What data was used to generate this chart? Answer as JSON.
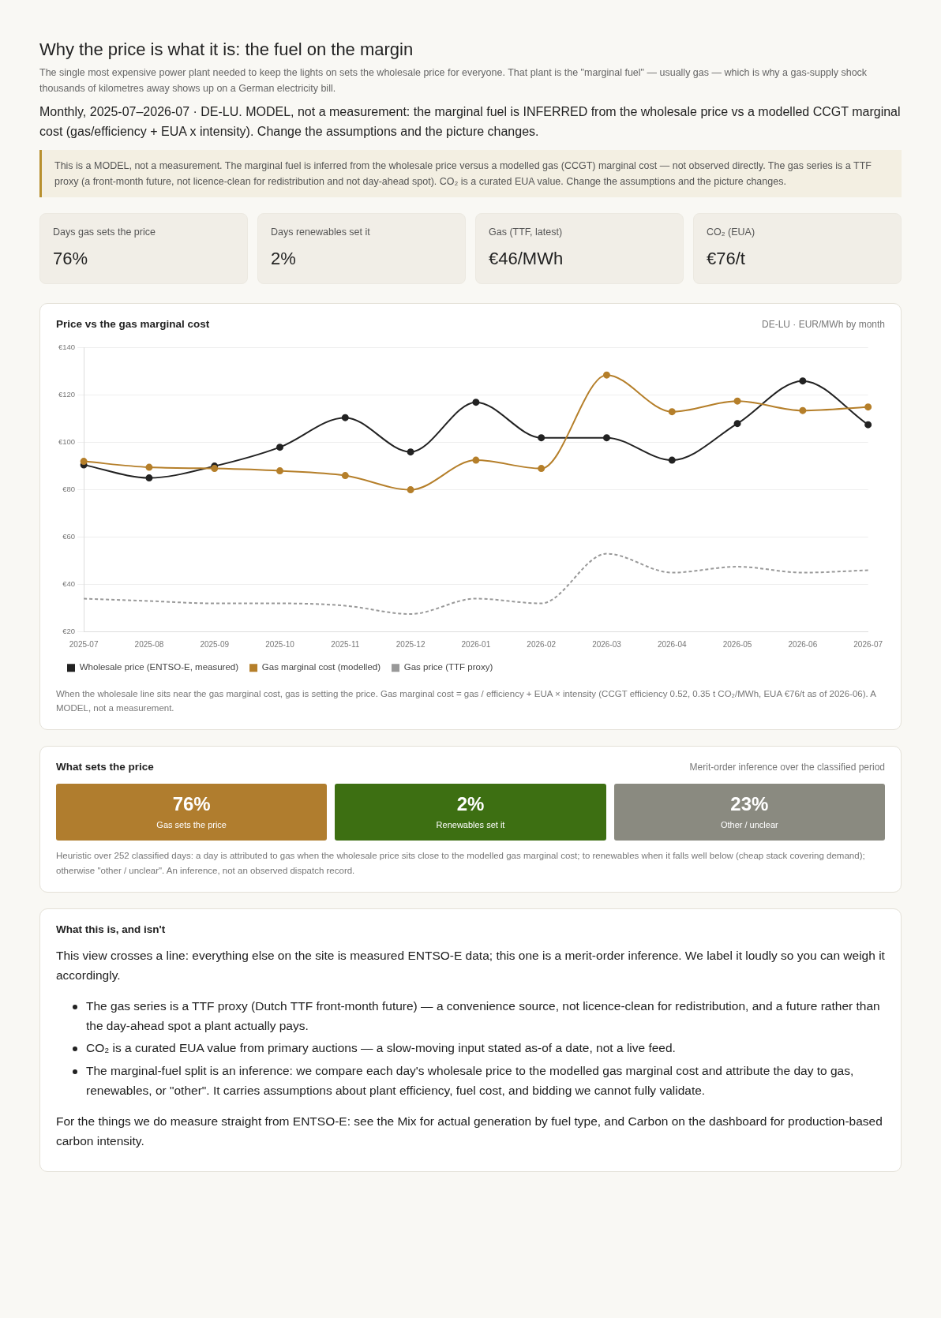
{
  "chart_data": [
    {
      "type": "other",
      "title": "Why the price is what it is: the fuel on the margin",
      "subtitle": "The single most expensive power plant needed to keep the lights on sets the wholesale price for everyone. That plant is the \"marginal fuel\" — usually gas — which is why a gas-supply shock thousands of kilometres away shows up on a German electricity bill.",
      "annotations": [
        "Monthly, 2025-07–2026-07 · DE-LU. MODEL, not a measurement: the marginal fuel is INFERRED from the wholesale price vs a modelled CCGT marginal cost (gas/efficiency + EUA x intensity). Change the assumptions and the picture changes.",
        "This is a MODEL, not a measurement. The marginal fuel is inferred from the wholesale price versus a modelled gas (CCGT) marginal cost — not observed directly. The gas series is a TTF proxy (a front-month future, not licence-clean for redistribution and not day-ahead spot). CO₂ is a curated EUA value. Change the assumptions and the picture changes."
      ],
      "categories": [
        "Days gas sets the price",
        "Days renewables set it",
        "Gas (TTF, latest)",
        "CO₂ (EUA)"
      ],
      "value_labels": [
        "76%",
        "2%",
        "€46/MWh",
        "€76/t"
      ]
    },
    {
      "type": "line",
      "title": "Price vs the gas marginal cost",
      "subtitle": "DE-LU · EUR/MWh by month",
      "categories": [
        "2025-07",
        "2025-08",
        "2025-09",
        "2025-10",
        "2025-11",
        "2025-12",
        "2026-01",
        "2026-02",
        "2026-03",
        "2026-04",
        "2026-05",
        "2026-06",
        "2026-07"
      ],
      "series": [
        {
          "name": "Wholesale price (ENTSO-E, measured)",
          "color": "#222222",
          "values": [
            90.5,
            85,
            90,
            98,
            110.5,
            96,
            117,
            102,
            102,
            92.5,
            108,
            126,
            107.5
          ]
        },
        {
          "name": "Gas marginal cost (modelled)",
          "color": "#b57f2a",
          "values": [
            92,
            89.5,
            89,
            88,
            86,
            80,
            92.5,
            89,
            128.5,
            113,
            117.5,
            113.5,
            115
          ]
        },
        {
          "name": "Gas price (TTF proxy)",
          "color": "#999999",
          "values": [
            34,
            33,
            32,
            32,
            31,
            27.5,
            34,
            32,
            53,
            45,
            47.5,
            45,
            46
          ],
          "marker": "none",
          "line_style": "dashed"
        }
      ],
      "ylim": [
        20,
        140
      ],
      "yticks": [
        {
          "value": 20,
          "label": "€20"
        },
        {
          "value": 40,
          "label": "€40"
        },
        {
          "value": 60,
          "label": "€60"
        },
        {
          "value": 80,
          "label": "€80"
        },
        {
          "value": 100,
          "label": "€100"
        },
        {
          "value": 120,
          "label": "€120"
        },
        {
          "value": 140,
          "label": "€140"
        }
      ],
      "grid": "y",
      "legend": "bottom",
      "marker": "circle",
      "line_style": "solid",
      "annotations": [
        "When the wholesale line sits near the gas marginal cost, gas is setting the price. Gas marginal cost = gas / efficiency + EUA × intensity (CCGT efficiency 0.52, 0.35 t CO₂/MWh, EUA €76/t as of 2026-06). A MODEL, not a measurement."
      ]
    },
    {
      "type": "other",
      "title": "What sets the price",
      "subtitle": "Merit-order inference over the classified period",
      "categories": [
        "Gas sets the price",
        "Renewables set it",
        "Other / unclear"
      ],
      "value_labels": [
        "76%",
        "2%",
        "23%"
      ],
      "colors": [
        "#b07d2e",
        "#3d6f12",
        "#8a8a80"
      ],
      "annotations": [
        "Heuristic over 252 classified days: a day is attributed to gas when the wholesale price sits close to the modelled gas marginal cost; to renewables when it falls well below (cheap stack covering demand); otherwise \"other / unclear\". An inference, not an observed dispatch record."
      ]
    },
    {
      "type": "other",
      "title": "What this is, and isn't",
      "annotations": [
        "This view crosses a line: everything else on the site is measured ENTSO-E data; this one is a merit-order inference. We label it loudly so you can weigh it accordingly.",
        "The gas series is a TTF proxy (Dutch TTF front-month future) — a convenience source, not licence-clean for redistribution, and a future rather than the day-ahead spot a plant actually pays.",
        "CO₂ is a curated EUA value from primary auctions — a slow-moving input stated as-of a date, not a live feed.",
        "The marginal-fuel split is an inference: we compare each day's wholesale price to the modelled gas marginal cost and attribute the day to gas, renewables, or \"other\". It carries assumptions about plant efficiency, fuel cost, and bidding we cannot fully validate.",
        "For the things we do measure straight from ENTSO-E: see the Mix for actual generation by fuel type, and Carbon on the dashboard for production-based carbon intensity."
      ]
    }
  ]
}
